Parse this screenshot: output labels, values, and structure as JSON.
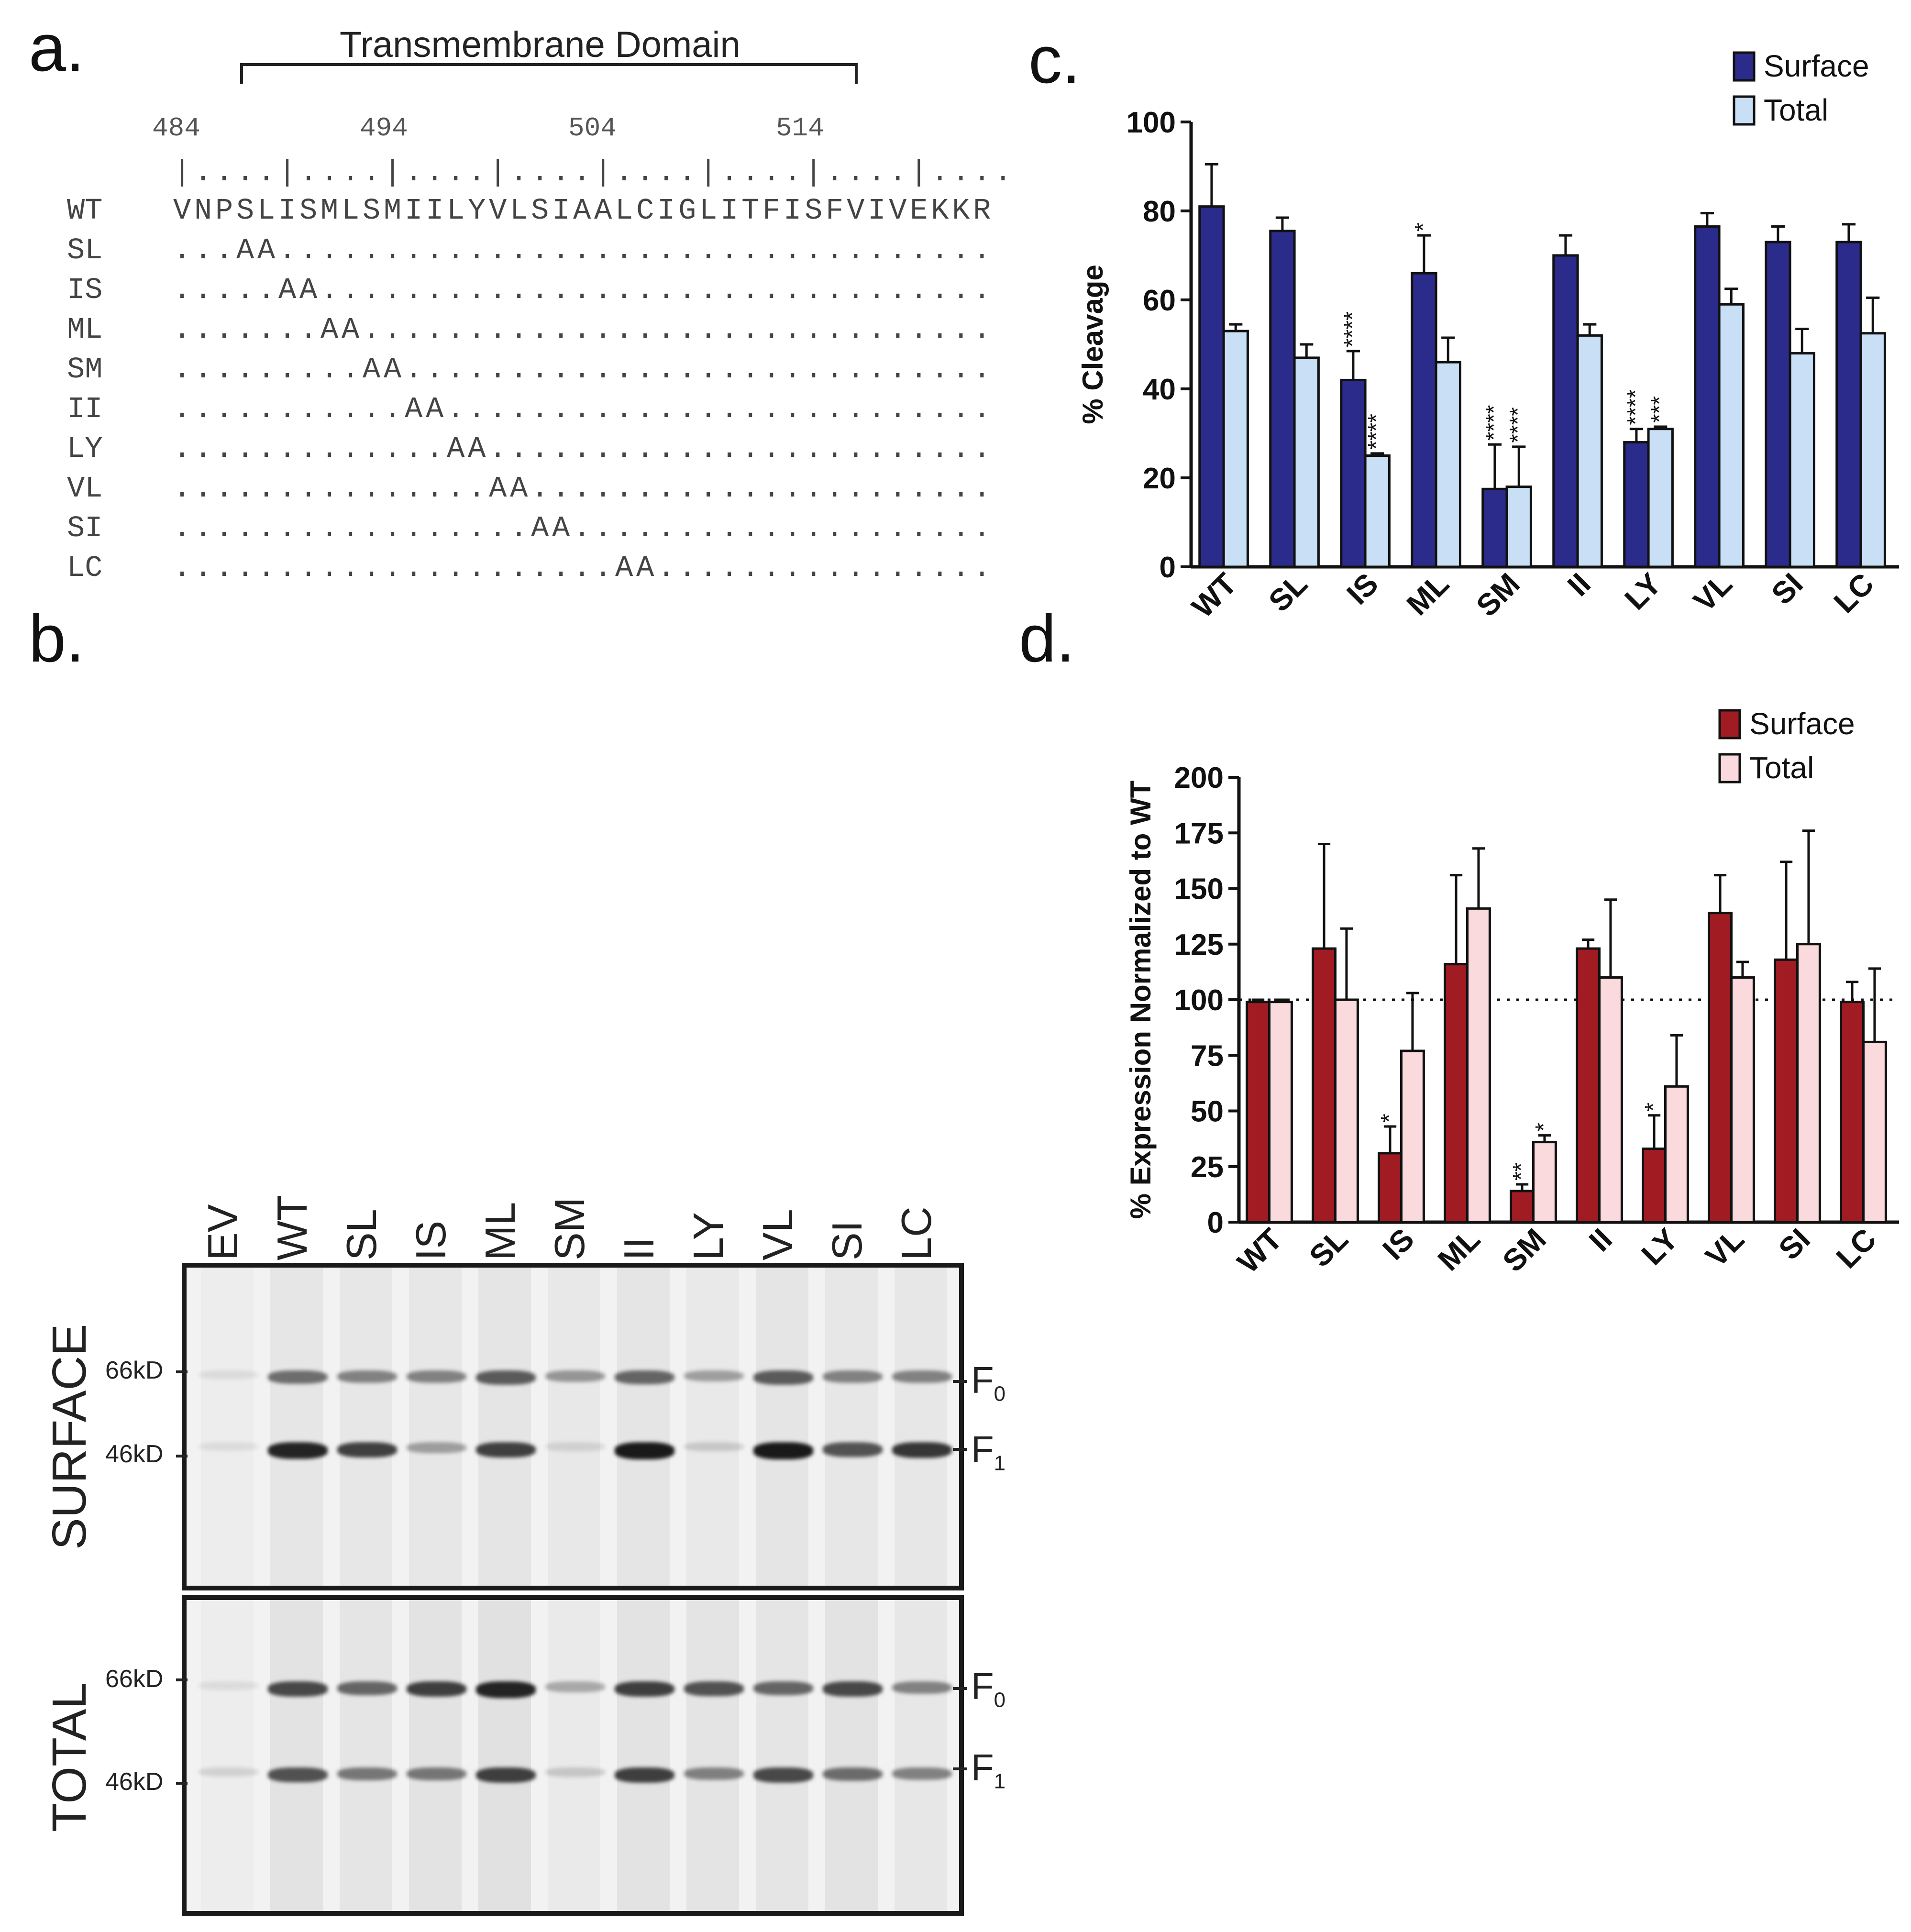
{
  "panel_labels": {
    "a": "a.",
    "b": "b.",
    "c": "c.",
    "d": "d."
  },
  "panel_a": {
    "domain_title": "Transmembrane Domain",
    "ruler_numbers": [
      "484",
      "494",
      "504",
      "514"
    ],
    "ruler_ticks": "|....|....|....|....|....|....|....|....",
    "rows": [
      {
        "name": "WT",
        "seq": "VNPSLISMLSMIILYVLSIAALCIGLITFISFVIVEKKR"
      },
      {
        "name": "SL",
        "seq": "...AA.................................."
      },
      {
        "name": "IS",
        "seq": ".....AA................................"
      },
      {
        "name": "ML",
        "seq": ".......AA.............................."
      },
      {
        "name": "SM",
        "seq": ".........AA............................"
      },
      {
        "name": "II",
        "seq": "...........AA.........................."
      },
      {
        "name": "LY",
        "seq": ".............AA........................"
      },
      {
        "name": "VL",
        "seq": "...............AA......................"
      },
      {
        "name": "SI",
        "seq": ".................AA...................."
      },
      {
        "name": "LC",
        "seq": ".....................AA................"
      }
    ]
  },
  "panel_b": {
    "lanes": [
      "EV",
      "WT",
      "SL",
      "IS",
      "ML",
      "SM",
      "II",
      "LY",
      "VL",
      "SI",
      "LC"
    ],
    "surface": {
      "label": "SURFACE",
      "markers": [
        "66kD",
        "46kD"
      ],
      "f0_intensity": [
        0.0,
        0.55,
        0.45,
        0.45,
        0.65,
        0.35,
        0.6,
        0.3,
        0.65,
        0.45,
        0.45
      ],
      "f1_intensity": [
        0.0,
        0.95,
        0.8,
        0.3,
        0.8,
        0.03,
        1.0,
        0.08,
        1.0,
        0.7,
        0.85
      ]
    },
    "total": {
      "label": "TOTAL",
      "markers": [
        "66kD",
        "46kD"
      ],
      "f0_intensity": [
        0.0,
        0.75,
        0.6,
        0.8,
        0.95,
        0.25,
        0.8,
        0.7,
        0.6,
        0.75,
        0.45
      ],
      "f1_intensity": [
        0.05,
        0.7,
        0.5,
        0.5,
        0.8,
        0.1,
        0.8,
        0.45,
        0.75,
        0.55,
        0.45
      ]
    },
    "band_labels": {
      "f": "F",
      "sub0": "0",
      "sub1": "1"
    }
  },
  "chart_data": [
    {
      "type": "bar",
      "panel": "c",
      "categories": [
        "WT",
        "SL",
        "IS",
        "ML",
        "SM",
        "II",
        "LY",
        "VL",
        "SI",
        "LC"
      ],
      "ylabel": "% Cleavage",
      "ylim": [
        0,
        100
      ],
      "yticks": [
        "0",
        "20",
        "40",
        "60",
        "80",
        "100"
      ],
      "series": [
        {
          "name": "Surface",
          "color": "#2b2b8c",
          "values": [
            81,
            75.5,
            42,
            66,
            17.5,
            70,
            28,
            76.5,
            73,
            73
          ],
          "errors": [
            9.5,
            3,
            6.5,
            8.5,
            10,
            4.5,
            3,
            3,
            3.5,
            4
          ],
          "annotations": [
            "",
            "",
            "****",
            "*",
            "****",
            "",
            "****",
            "",
            "",
            ""
          ]
        },
        {
          "name": "Total",
          "color": "#c8dff5",
          "values": [
            53,
            47,
            25,
            46,
            18,
            52,
            31,
            59,
            48,
            52.5
          ],
          "errors": [
            1.5,
            3,
            0.5,
            5.5,
            9,
            2.5,
            0.5,
            3.5,
            5.5,
            8
          ],
          "annotations": [
            "",
            "",
            "****",
            "",
            "****",
            "",
            "***",
            "",
            "",
            ""
          ]
        }
      ]
    },
    {
      "type": "bar",
      "panel": "d",
      "categories": [
        "WT",
        "SL",
        "IS",
        "ML",
        "SM",
        "II",
        "LY",
        "VL",
        "SI",
        "LC"
      ],
      "ylabel": "% Expression Normalized to WT",
      "ylim": [
        0,
        200
      ],
      "yticks": [
        "0",
        "25",
        "50",
        "75",
        "100",
        "125",
        "150",
        "175",
        "200"
      ],
      "reference_line": 100,
      "series": [
        {
          "name": "Surface",
          "color": "#a11b23",
          "values": [
            99,
            123,
            31,
            116,
            14,
            123,
            33,
            139,
            118,
            99
          ],
          "errors": [
            1,
            47,
            12,
            40,
            3,
            4,
            15,
            17,
            44,
            9
          ],
          "annotations": [
            "",
            "",
            "*",
            "",
            "**",
            "",
            "*",
            "",
            "",
            ""
          ]
        },
        {
          "name": "Total",
          "color": "#fadadd",
          "values": [
            99,
            100,
            77,
            141,
            36,
            110,
            61,
            110,
            125,
            81
          ],
          "errors": [
            1,
            32,
            26,
            27,
            3,
            35,
            23,
            7,
            51,
            33
          ],
          "annotations": [
            "",
            "",
            "",
            "",
            "*",
            "",
            "",
            "",
            "",
            ""
          ]
        }
      ]
    }
  ]
}
